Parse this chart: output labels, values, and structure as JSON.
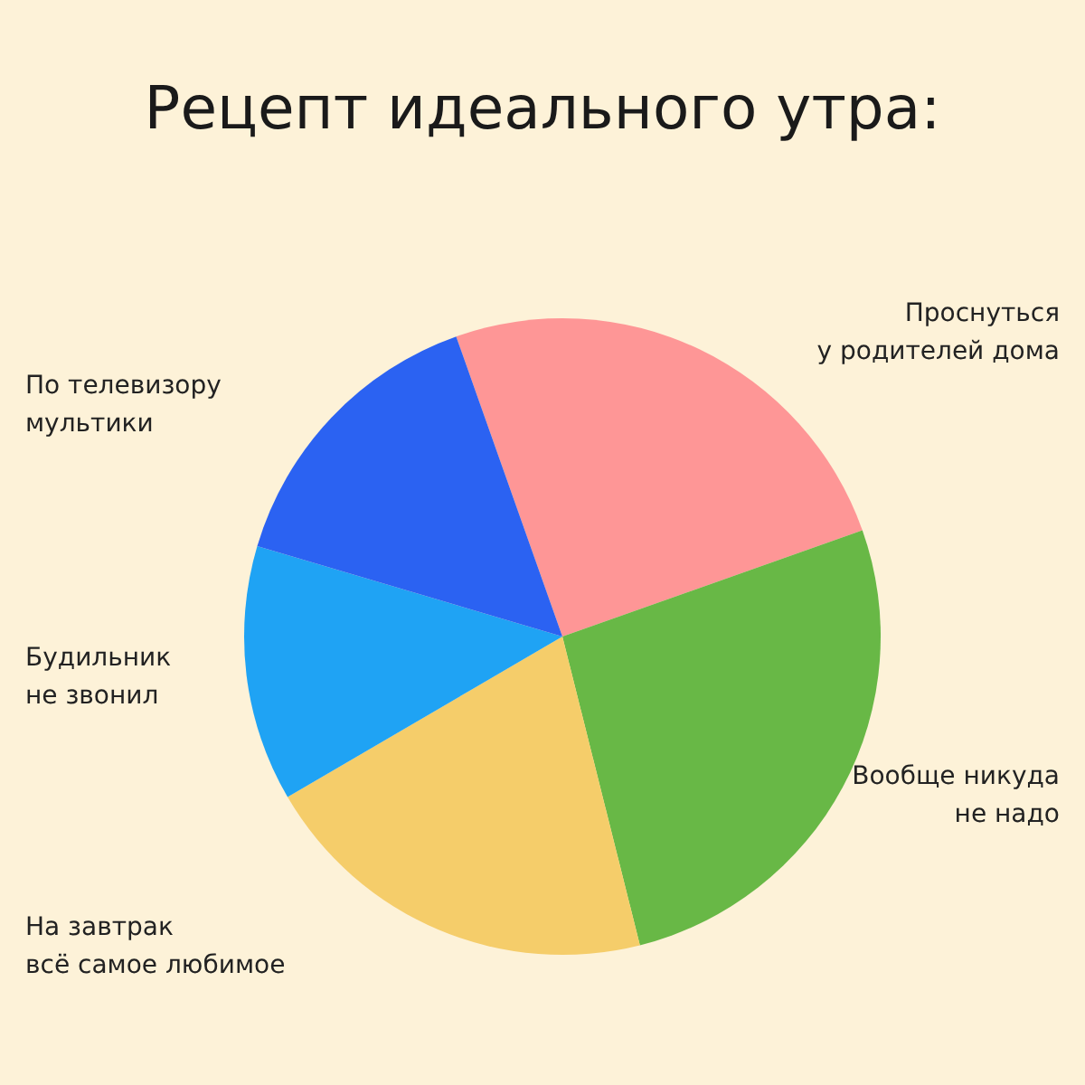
{
  "chart_data": {
    "type": "pie",
    "title": "Рецепт идеального утра:",
    "categories": [
      "Проснуться\nу родителей дома",
      "Вообще никуда\nне надо",
      "На завтрак\nвсё самое любимое",
      "Будильник\nне звонил",
      "По телевизору\nмультики"
    ],
    "values": [
      25,
      26.5,
      20.5,
      13,
      15
    ],
    "colors": [
      "#fe9696",
      "#68b846",
      "#f5cd6a",
      "#1fa3f4",
      "#2b62f2"
    ]
  }
}
